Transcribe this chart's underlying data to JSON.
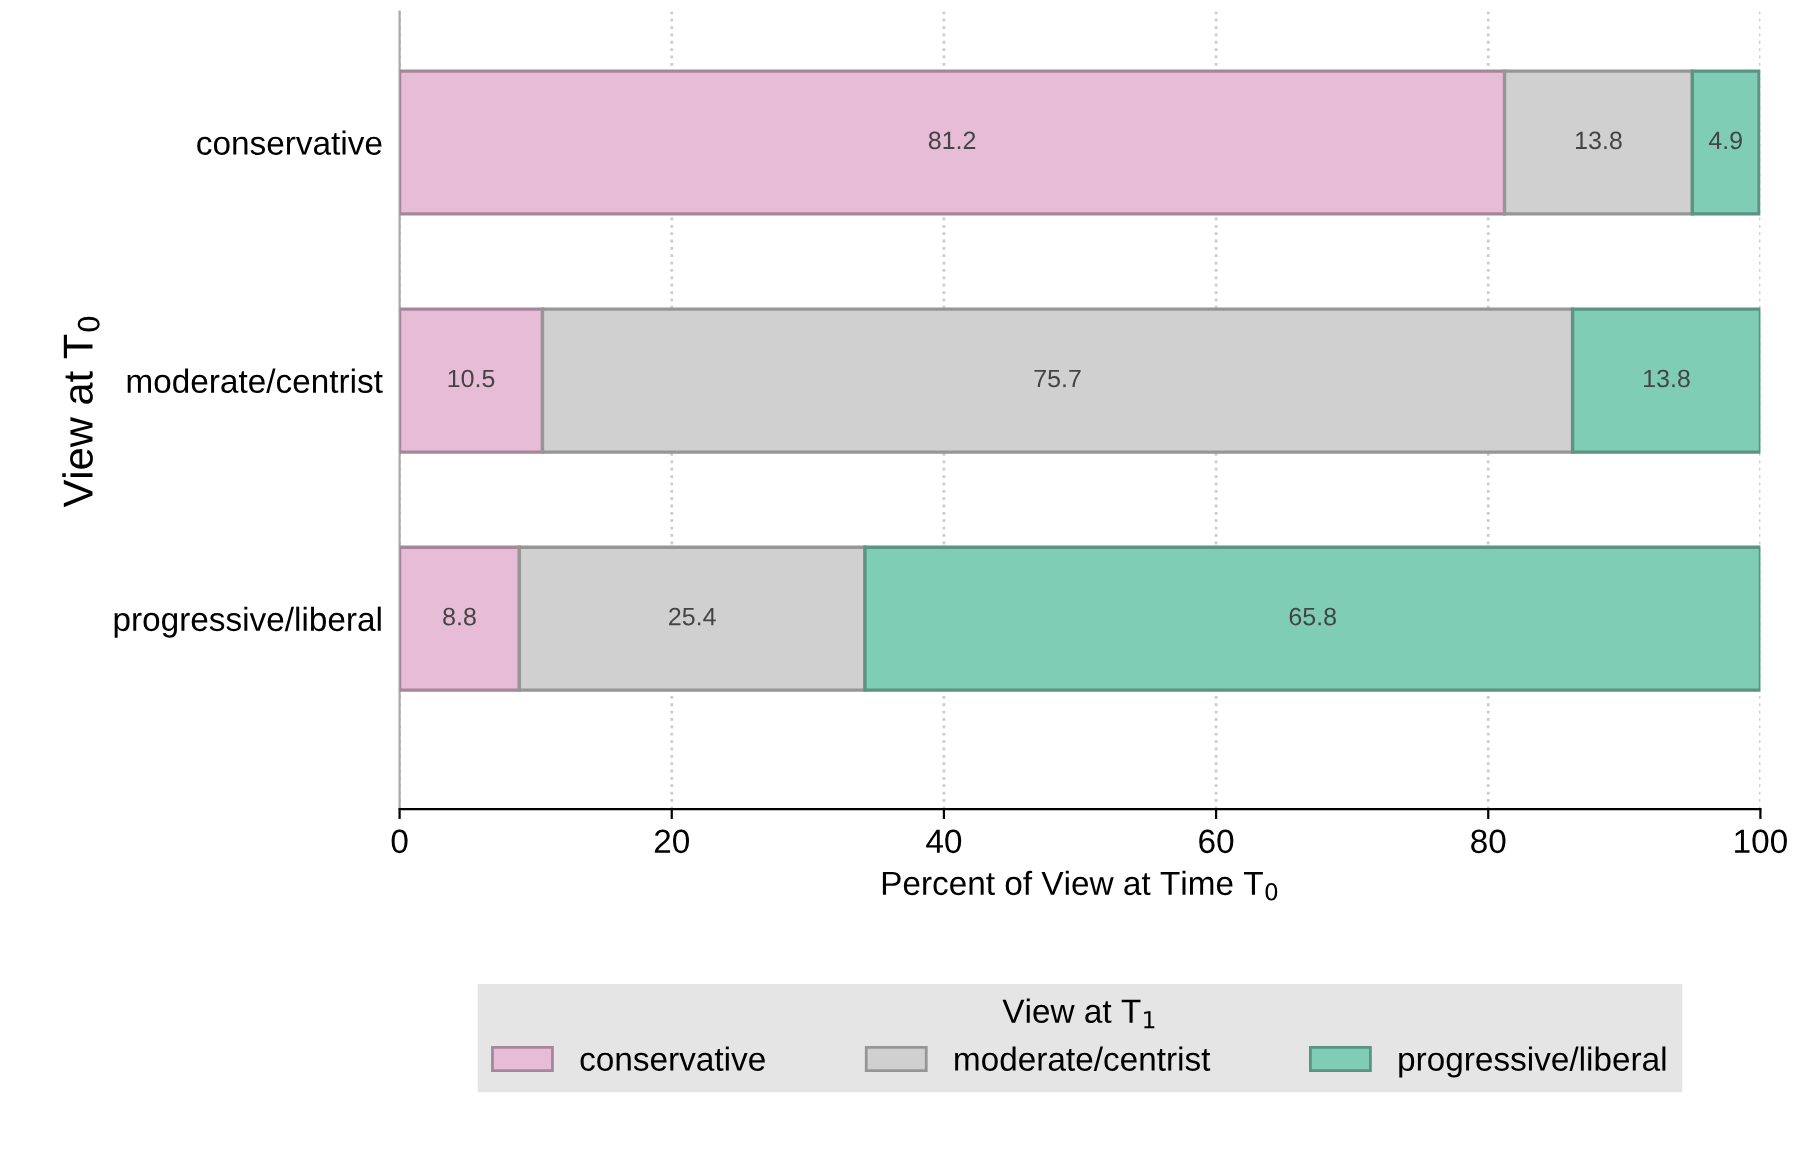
{
  "chart_data": {
    "type": "bar",
    "orientation": "horizontal",
    "stacked": true,
    "categories": [
      "conservative",
      "moderate/centrist",
      "progressive/liberal"
    ],
    "series": [
      {
        "name": "conservative",
        "color": "#e6bcd6",
        "values": [
          81.2,
          10.5,
          8.8
        ]
      },
      {
        "name": "moderate/centrist",
        "color": "#d0d0d0",
        "values": [
          13.8,
          75.7,
          25.4
        ]
      },
      {
        "name": "progressive/liberal",
        "color": "#7fcdb5",
        "values": [
          4.9,
          13.8,
          65.8
        ]
      }
    ],
    "xlabel": "Percent of View at Time T$_{0}$",
    "ylabel": "View at T$_{0}$",
    "legend_title": "View at T$_{1}$",
    "xlim": [
      0,
      100
    ],
    "xticks": [
      0,
      20,
      40,
      60,
      80,
      100
    ],
    "grid": "x",
    "legend": "bottom",
    "data_labels": true
  }
}
